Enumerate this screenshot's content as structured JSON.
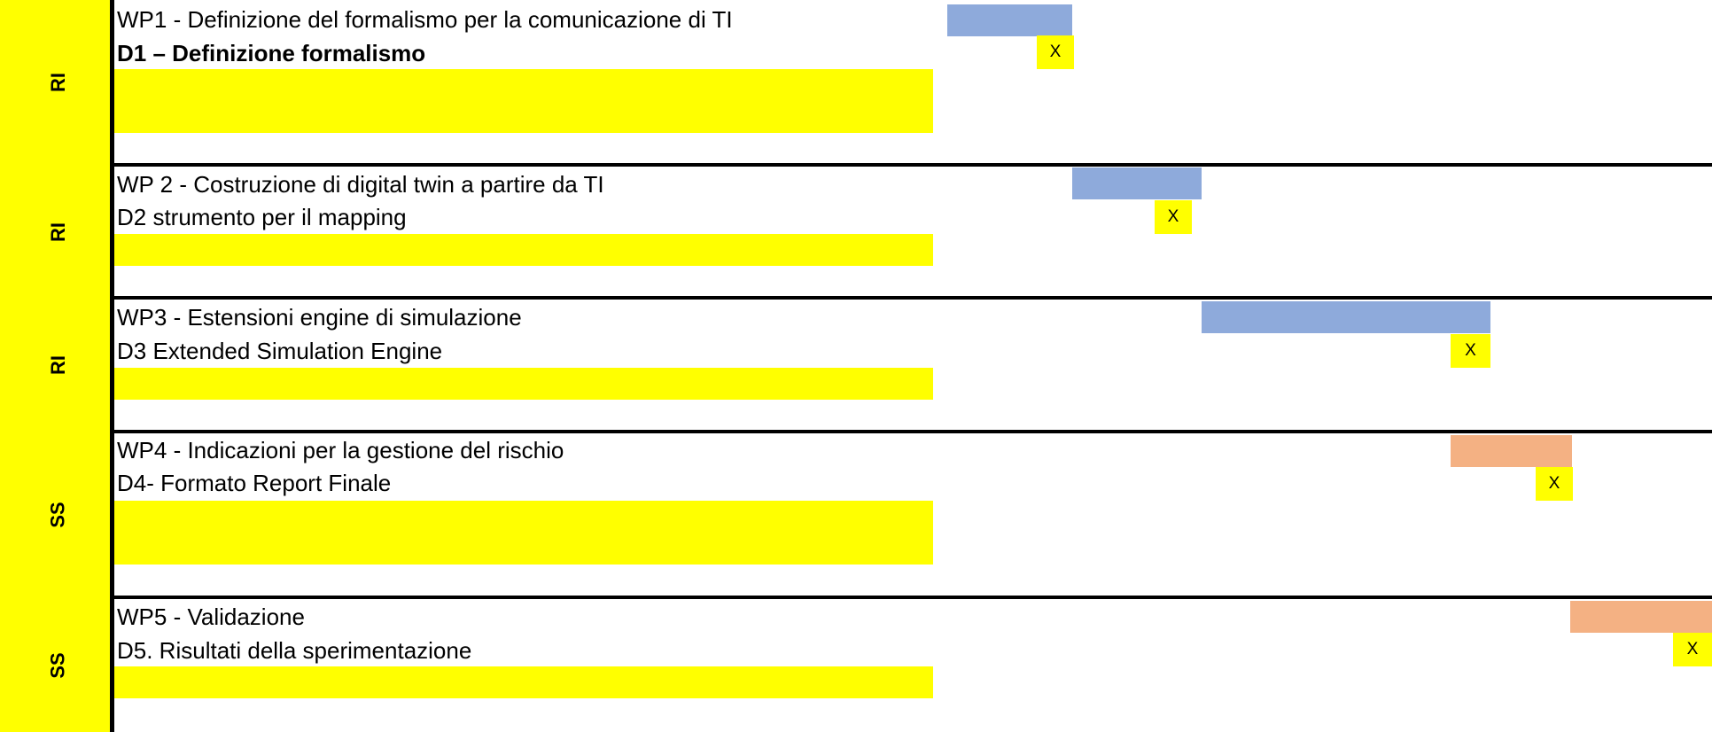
{
  "colors": {
    "highlight": "#ffff00",
    "bar_blue": "#8eaadb",
    "bar_orange": "#f4b183",
    "rule": "#000000"
  },
  "mark_symbol": "X",
  "rows": [
    {
      "category": "RI",
      "wp": "WP1 - Definizione del formalismo per la comunicazione di TI",
      "deliverable": "D1 – Definizione formalismo"
    },
    {
      "category": "RI",
      "wp": "WP 2 - Costruzione di digital twin a partire da TI",
      "deliverable": "D2 strumento per il mapping"
    },
    {
      "category": "RI",
      "wp": "WP3 - Estensioni engine di simulazione",
      "deliverable": "D3 Extended Simulation Engine"
    },
    {
      "category": "SS",
      "wp": "WP4 - Indicazioni per la gestione del rischio",
      "deliverable": "D4- Formato Report Finale"
    },
    {
      "category": "SS",
      "wp": "WP5 - Validazione",
      "deliverable": "D5. Risultati della sperimentazione"
    }
  ]
}
